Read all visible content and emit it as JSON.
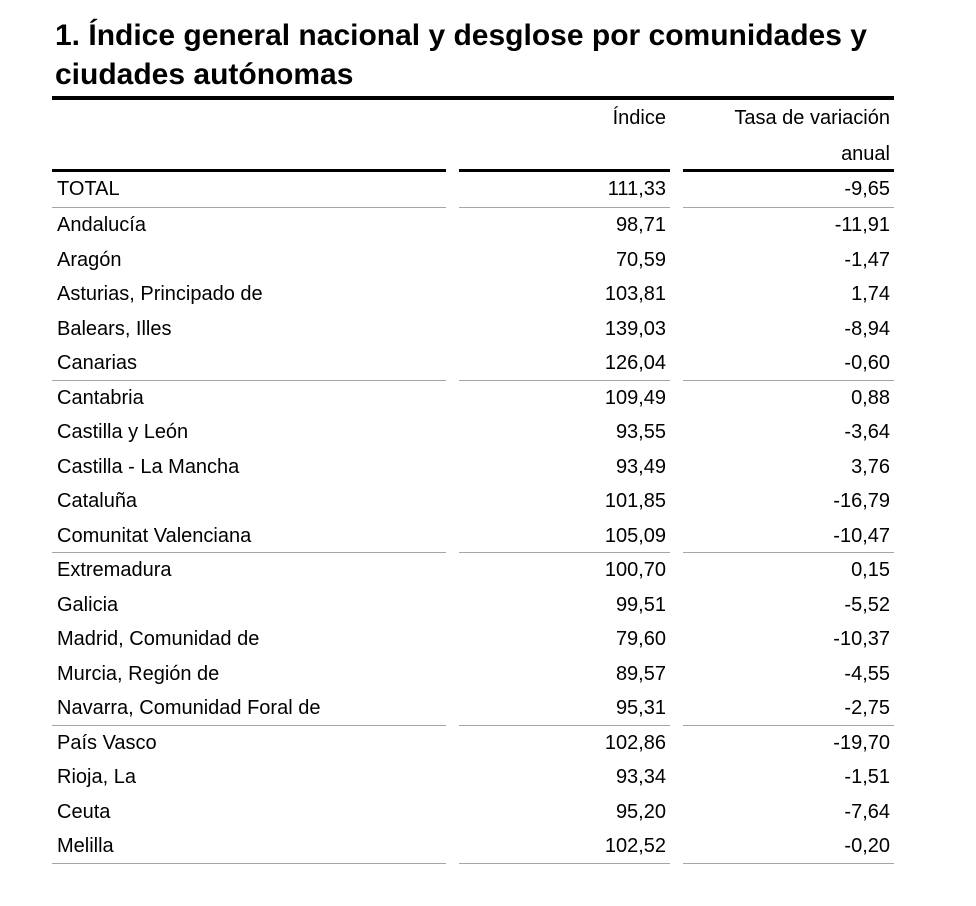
{
  "title": "1. Índice general nacional y desglose por comunidades y ciudades autónomas",
  "columns": {
    "index": "Índice",
    "rate_line1": "Tasa de variación",
    "rate_line2": "anual"
  },
  "rows": [
    {
      "name": "TOTAL",
      "index": "111,33",
      "rate": "-9,65",
      "separator": true
    },
    {
      "name": "Andalucía",
      "index": "98,71",
      "rate": "-11,91"
    },
    {
      "name": "Aragón",
      "index": "70,59",
      "rate": "-1,47"
    },
    {
      "name": "Asturias, Principado de",
      "index": "103,81",
      "rate": "1,74"
    },
    {
      "name": "Balears, Illes",
      "index": "139,03",
      "rate": "-8,94"
    },
    {
      "name": "Canarias",
      "index": "126,04",
      "rate": "-0,60",
      "separator": true
    },
    {
      "name": "Cantabria",
      "index": "109,49",
      "rate": "0,88"
    },
    {
      "name": "Castilla y León",
      "index": "93,55",
      "rate": "-3,64"
    },
    {
      "name": "Castilla - La Mancha",
      "index": "93,49",
      "rate": "3,76"
    },
    {
      "name": "Cataluña",
      "index": "101,85",
      "rate": "-16,79"
    },
    {
      "name": "Comunitat Valenciana",
      "index": "105,09",
      "rate": "-10,47",
      "separator": true
    },
    {
      "name": "Extremadura",
      "index": "100,70",
      "rate": "0,15"
    },
    {
      "name": "Galicia",
      "index": "99,51",
      "rate": "-5,52"
    },
    {
      "name": "Madrid, Comunidad de",
      "index": "79,60",
      "rate": "-10,37"
    },
    {
      "name": "Murcia, Región de",
      "index": "89,57",
      "rate": "-4,55"
    },
    {
      "name": "Navarra, Comunidad Foral de",
      "index": "95,31",
      "rate": "-2,75",
      "separator": true
    },
    {
      "name": "País Vasco",
      "index": "102,86",
      "rate": "-19,70"
    },
    {
      "name": "Rioja, La",
      "index": "93,34",
      "rate": "-1,51"
    },
    {
      "name": "Ceuta",
      "index": "95,20",
      "rate": "-7,64"
    },
    {
      "name": "Melilla",
      "index": "102,52",
      "rate": "-0,20",
      "separator": true
    }
  ]
}
